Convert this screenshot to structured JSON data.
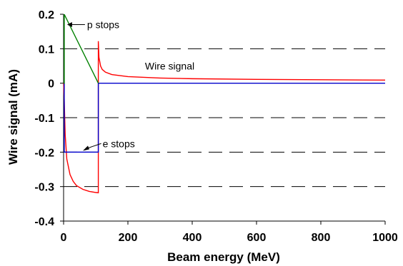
{
  "chart_data": {
    "type": "line",
    "xlabel": "Beam energy (MeV)",
    "ylabel": "Wire signal (mA)",
    "xlim": [
      0,
      1000
    ],
    "ylim": [
      -0.4,
      0.2
    ],
    "x_ticks": [
      0,
      200,
      400,
      600,
      800,
      1000
    ],
    "y_ticks": [
      -0.4,
      -0.3,
      -0.2,
      -0.1,
      0,
      0.1,
      0.2
    ],
    "x_tick_labels": [
      "0",
      "200",
      "400",
      "600",
      "800",
      "1000"
    ],
    "y_tick_labels": [
      "-0.4",
      "-0.3",
      "-0.2",
      "-0.1",
      "0",
      "0.1",
      "0.2"
    ],
    "grid": "horizontal dashed",
    "legend": "none",
    "series": [
      {
        "color": "#ff0000",
        "x": [
          0,
          2,
          5,
          10,
          20,
          30,
          40,
          60,
          80,
          100,
          108,
          108,
          110,
          115,
          120,
          130,
          150,
          200,
          300,
          400,
          600,
          800,
          1000
        ],
        "y": [
          0.0,
          -0.05,
          -0.15,
          -0.22,
          -0.265,
          -0.285,
          -0.297,
          -0.308,
          -0.314,
          -0.317,
          -0.318,
          0.122,
          0.075,
          0.05,
          0.04,
          0.032,
          0.025,
          0.019,
          0.015,
          0.013,
          0.011,
          0.01,
          0.009
        ]
      },
      {
        "color": "#0000cc",
        "x": [
          0,
          2,
          2,
          108,
          108,
          1000
        ],
        "y": [
          0.0,
          0.0,
          -0.2,
          -0.2,
          0.0,
          0.0
        ]
      },
      {
        "color": "#008000",
        "x": [
          0,
          2,
          2,
          108
        ],
        "y": [
          0.0,
          0.0,
          0.2,
          0.0
        ]
      }
    ],
    "annotations": [
      {
        "text": "p stops",
        "anchor": "arrow to green peak near x=0"
      },
      {
        "text": "Wire signal",
        "anchor": "above red curve"
      },
      {
        "text": "e stops",
        "anchor": "arrow to blue line at -0.2"
      }
    ],
    "colors": {
      "grid": "#000000",
      "axis": "#000000",
      "wire_signal": "#ff0000",
      "e_stops": "#0000cc",
      "p_stops": "#008000"
    }
  }
}
